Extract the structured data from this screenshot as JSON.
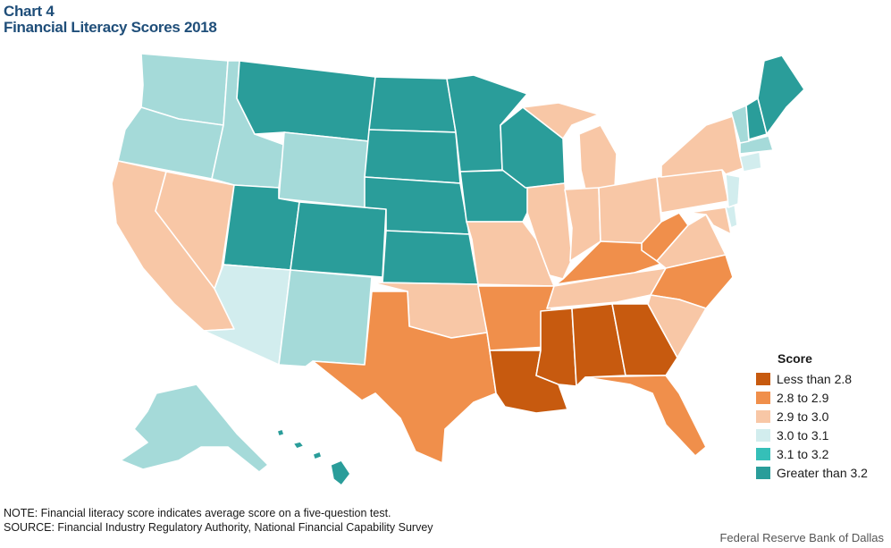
{
  "title": {
    "line1": "Chart 4",
    "line2": "Financial Literacy Scores 2018"
  },
  "legend": {
    "title": "Score",
    "items": [
      {
        "label": "Less than 2.8",
        "color": "#c75a0f"
      },
      {
        "label": "2.8 to 2.9",
        "color": "#f08f4b"
      },
      {
        "label": "2.9 to 3.0",
        "color": "#f8c7a6"
      },
      {
        "label": "3.0 to 3.1",
        "color": "#d2edee"
      },
      {
        "label": "3.1 to 3.2",
        "color": "#35bfb8"
      },
      {
        "label": "Greater than 3.2",
        "color": "#2a9d9a"
      }
    ]
  },
  "note": {
    "line1": "NOTE: Financial literacy score indicates average score on a five-question test.",
    "line2": "SOURCE: Financial Industry Regulatory Authority, National Financial Capability Survey"
  },
  "credit": "Federal Reserve Bank of Dallas",
  "state_colors": {
    "WA": "#a5dad9",
    "OR": "#a5dad9",
    "ID": "#a5dad9",
    "WY": "#a5dad9",
    "AK": "#a5dad9",
    "VT": "#a5dad9",
    "MA": "#a5dad9",
    "AZ": "#d2edee",
    "NM": "#a5dad9",
    "CT": "#d2edee",
    "NJ": "#d2edee",
    "DE": "#d2edee",
    "MT": "#2a9d9a",
    "ND": "#2a9d9a",
    "SD": "#2a9d9a",
    "NE": "#2a9d9a",
    "KS": "#2a9d9a",
    "CO": "#2a9d9a",
    "UT": "#2a9d9a",
    "MN": "#2a9d9a",
    "IA": "#2a9d9a",
    "WI": "#2a9d9a",
    "ME": "#2a9d9a",
    "NH": "#2a9d9a",
    "HI": "#2a9d9a",
    "CA": "#f8c7a6",
    "NV": "#f8c7a6",
    "OK": "#f8c7a6",
    "MO": "#f8c7a6",
    "IL": "#f8c7a6",
    "IN": "#f8c7a6",
    "OH": "#f8c7a6",
    "MI": "#f8c7a6",
    "PA": "#f8c7a6",
    "NY": "#f8c7a6",
    "VA": "#f8c7a6",
    "MD": "#f8c7a6",
    "TN": "#f8c7a6",
    "SC": "#f8c7a6",
    "TX": "#f08f4b",
    "AR": "#f08f4b",
    "KY": "#f08f4b",
    "WV": "#f08f4b",
    "NC": "#f08f4b",
    "FL": "#f08f4b",
    "LA": "#c75a0f",
    "MS": "#c75a0f",
    "AL": "#c75a0f",
    "GA": "#c75a0f"
  }
}
